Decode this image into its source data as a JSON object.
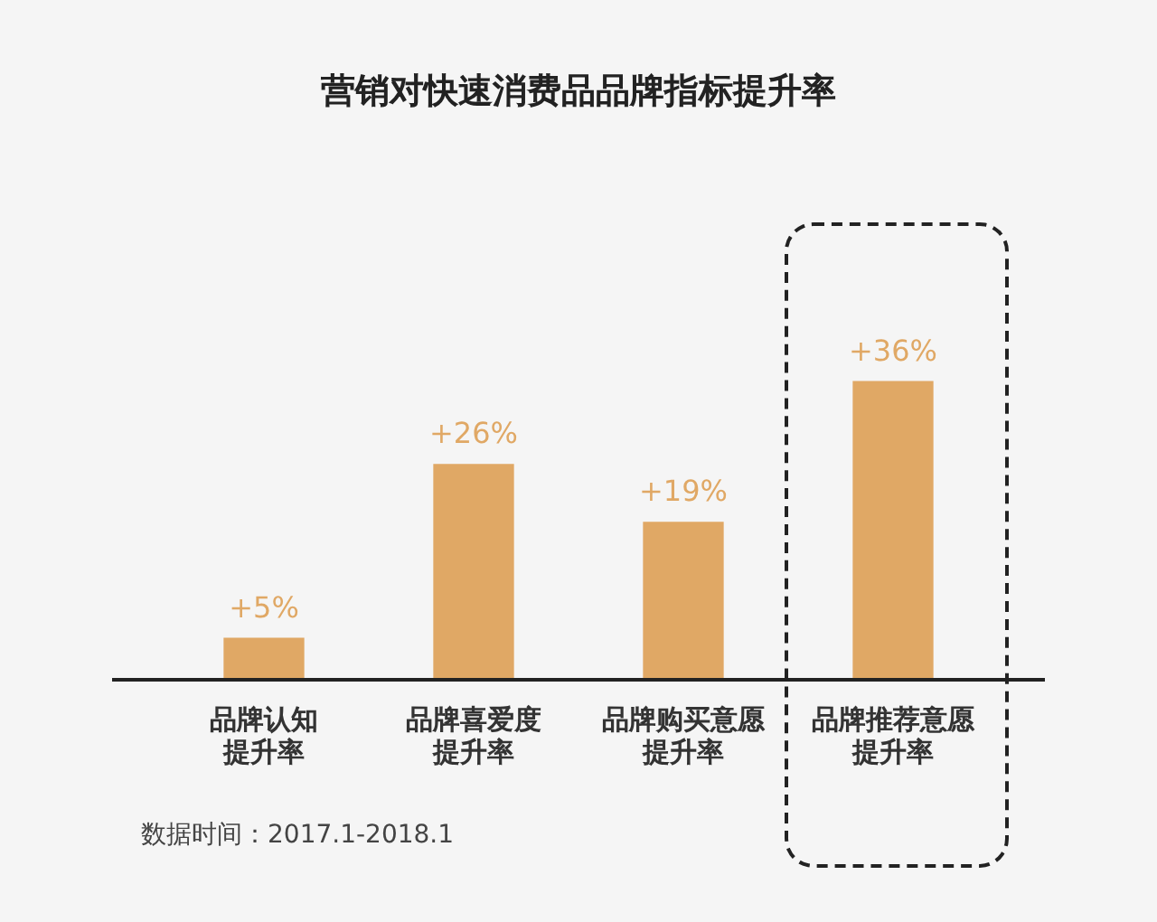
{
  "chart_data": {
    "type": "bar",
    "title": "营销对快速消费品品牌指标提升率",
    "categories": [
      "品牌认知提升率",
      "品牌喜爱度提升率",
      "品牌购买意愿提升率",
      "品牌推荐意愿提升率"
    ],
    "values": [
      5,
      26,
      19,
      36
    ],
    "color": "#e0a865",
    "value_labels": [
      "+5%",
      "+26%",
      "+19%",
      "+36%"
    ],
    "grid": false,
    "legend": false,
    "annotations": [
      "数据时间：2017.1-2018.1"
    ]
  }
}
